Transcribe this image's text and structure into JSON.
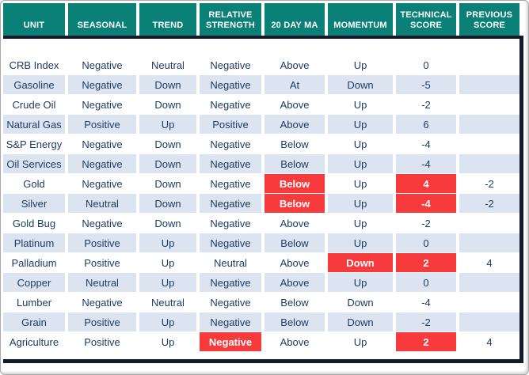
{
  "colors": {
    "header_teal": "#0b8077",
    "highlight_red": "#f73b3d",
    "alt_row_blue": "#dbe4f0",
    "border_dark": "#131a2c",
    "text_navy": "#1e3c61"
  },
  "chart_data": {
    "type": "table",
    "columns": [
      "UNIT",
      "SEASONAL",
      "TREND",
      "RELATIVE STRENGTH",
      "20 DAY MA",
      "MOMENTUM",
      "TECHNICAL SCORE",
      "PREVIOUS SCORE"
    ],
    "column_keys": [
      "unit",
      "seasonal",
      "trend",
      "rs",
      "ma",
      "momentum",
      "tech",
      "prev"
    ],
    "rows": [
      {
        "values": {
          "unit": "CRB Index",
          "seasonal": "Negative",
          "trend": "Neutral",
          "rs": "Negative",
          "ma": "Above",
          "momentum": "Up",
          "tech": "0",
          "prev": ""
        },
        "highlights": []
      },
      {
        "values": {
          "unit": "Gasoline",
          "seasonal": "Negative",
          "trend": "Down",
          "rs": "Negative",
          "ma": "At",
          "momentum": "Down",
          "tech": "-5",
          "prev": ""
        },
        "highlights": []
      },
      {
        "values": {
          "unit": "Crude Oil",
          "seasonal": "Negative",
          "trend": "Down",
          "rs": "Negative",
          "ma": "Above",
          "momentum": "Up",
          "tech": "-2",
          "prev": ""
        },
        "highlights": []
      },
      {
        "values": {
          "unit": "Natural Gas",
          "seasonal": "Positive",
          "trend": "Up",
          "rs": "Positive",
          "ma": "Above",
          "momentum": "Up",
          "tech": "6",
          "prev": ""
        },
        "highlights": []
      },
      {
        "values": {
          "unit": "S&P Energy",
          "seasonal": "Negative",
          "trend": "Down",
          "rs": "Negative",
          "ma": "Below",
          "momentum": "Up",
          "tech": "-4",
          "prev": ""
        },
        "highlights": []
      },
      {
        "values": {
          "unit": "Oil Services",
          "seasonal": "Negative",
          "trend": "Down",
          "rs": "Negative",
          "ma": "Below",
          "momentum": "Up",
          "tech": "-4",
          "prev": ""
        },
        "highlights": []
      },
      {
        "values": {
          "unit": "Gold",
          "seasonal": "Negative",
          "trend": "Down",
          "rs": "Negative",
          "ma": "Below",
          "momentum": "Up",
          "tech": "4",
          "prev": "-2"
        },
        "highlights": [
          "ma",
          "tech"
        ]
      },
      {
        "values": {
          "unit": "Silver",
          "seasonal": "Neutral",
          "trend": "Down",
          "rs": "Negative",
          "ma": "Below",
          "momentum": "Up",
          "tech": "-4",
          "prev": "-2"
        },
        "highlights": [
          "ma",
          "tech"
        ]
      },
      {
        "values": {
          "unit": "Gold Bug",
          "seasonal": "Negative",
          "trend": "Down",
          "rs": "Negative",
          "ma": "Above",
          "momentum": "Up",
          "tech": "-2",
          "prev": ""
        },
        "highlights": []
      },
      {
        "values": {
          "unit": "Platinum",
          "seasonal": "Positive",
          "trend": "Up",
          "rs": "Negative",
          "ma": "Below",
          "momentum": "Up",
          "tech": "0",
          "prev": ""
        },
        "highlights": []
      },
      {
        "values": {
          "unit": "Palladium",
          "seasonal": "Positive",
          "trend": "Up",
          "rs": "Neutral",
          "ma": "Above",
          "momentum": "Down",
          "tech": "2",
          "prev": "4"
        },
        "highlights": [
          "momentum",
          "tech"
        ]
      },
      {
        "values": {
          "unit": "Copper",
          "seasonal": "Neutral",
          "trend": "Up",
          "rs": "Negative",
          "ma": "Above",
          "momentum": "Up",
          "tech": "0",
          "prev": ""
        },
        "highlights": []
      },
      {
        "values": {
          "unit": "Lumber",
          "seasonal": "Negative",
          "trend": "Neutral",
          "rs": "Negative",
          "ma": "Below",
          "momentum": "Down",
          "tech": "-4",
          "prev": ""
        },
        "highlights": []
      },
      {
        "values": {
          "unit": "Grain",
          "seasonal": "Positive",
          "trend": "Up",
          "rs": "Negative",
          "ma": "Below",
          "momentum": "Down",
          "tech": "-2",
          "prev": ""
        },
        "highlights": []
      },
      {
        "values": {
          "unit": "Agriculture",
          "seasonal": "Positive",
          "trend": "Up",
          "rs": "Negative",
          "ma": "Above",
          "momentum": "Up",
          "tech": "2",
          "prev": "4"
        },
        "highlights": [
          "rs",
          "tech"
        ]
      }
    ]
  }
}
